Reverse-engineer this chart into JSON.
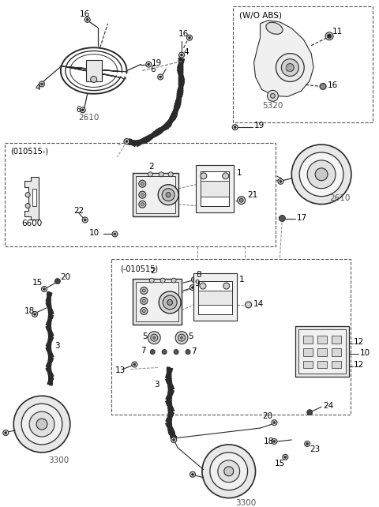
{
  "bg_color": "#ffffff",
  "lc": "#2a2a2a",
  "gray": "#888888",
  "lgray": "#cccccc",
  "dashed_color": "#555555",
  "fig_width": 4.8,
  "fig_height": 6.42,
  "dpi": 100
}
